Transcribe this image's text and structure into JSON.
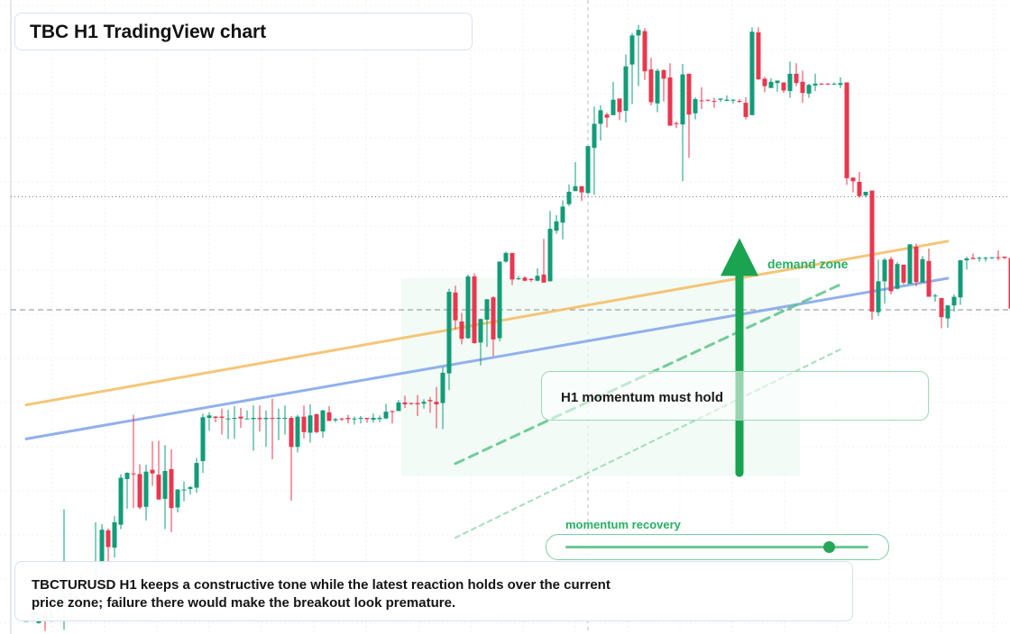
{
  "title": "TBC H1 TradingView chart",
  "labels": {
    "zone": "demand zone",
    "callout": "H1 momentum must hold",
    "meter": "momentum recovery"
  },
  "meter_value": 0.87,
  "note": "TBCTURUSD H1 keeps a constructive tone while the latest reaction holds over the current price zone; failure there would make the breakout look premature.",
  "colors": {
    "up": "#129c78",
    "down": "#e8374f",
    "orange_line": "#f5c06a",
    "blue_line": "#8cacec",
    "green_accent": "#1aa350",
    "zone_fill": "#eef9f1"
  },
  "chart_data": {
    "type": "candlestick",
    "timeframe": "H1",
    "y_range": [
      0,
      100
    ],
    "current_price_line": 70.2,
    "reference_line": 51.9,
    "demand_zone": {
      "from_bar": 60,
      "to_bar": 122,
      "low": 25,
      "high": 57
    },
    "candles": [
      [
        1.4,
        1.9,
        0.9,
        0.9
      ],
      [
        1.9,
        3.2,
        3.9,
        1.6
      ],
      [
        1.2,
        2.8,
        2.8,
        1.1
      ],
      [
        2.9,
        1.8,
        3.4,
        -0.1
      ],
      [
        1.7,
        3.3,
        3.8,
        1.4
      ],
      [
        3.1,
        4.5,
        5.6,
        2.5
      ],
      [
        4.4,
        6.0,
        19.6,
        0.1
      ],
      [
        6.3,
        4.8,
        6.5,
        1.5
      ],
      [
        3.8,
        5.6,
        5.9,
        3.8
      ],
      [
        5.7,
        6.6,
        7.3,
        5.4
      ],
      [
        6.7,
        6.9,
        7.1,
        6.4
      ],
      [
        7.0,
        10.0,
        17.5,
        6.0
      ],
      [
        10.0,
        16.3,
        17.2,
        6.6
      ],
      [
        16.2,
        13.5,
        16.5,
        6.2
      ],
      [
        13.4,
        17.5,
        18.5,
        11.8
      ],
      [
        17.1,
        24.7,
        25.3,
        16.4
      ],
      [
        24.5,
        25.5,
        25.6,
        19.7
      ],
      [
        25.4,
        25.3,
        34.9,
        19.8
      ],
      [
        25.3,
        19.9,
        26.9,
        19.6
      ],
      [
        20.0,
        25.7,
        26.8,
        17.8
      ],
      [
        26.0,
        25.4,
        30.6,
        23.4
      ],
      [
        25.2,
        21.2,
        30.7,
        21.1
      ],
      [
        21.3,
        25.8,
        30.0,
        16.4
      ],
      [
        26.1,
        19.8,
        29.3,
        15.9
      ],
      [
        19.9,
        22.8,
        22.9,
        19.1
      ],
      [
        22.7,
        22.8,
        24.1,
        20.9
      ],
      [
        22.9,
        23.2,
        23.4,
        22.0
      ],
      [
        23.1,
        27.1,
        27.9,
        22.3
      ],
      [
        27.4,
        34.5,
        35.1,
        25.5
      ],
      [
        34.4,
        34.8,
        35.3,
        32.3
      ],
      [
        34.6,
        34.4,
        34.7,
        33.7
      ],
      [
        34.6,
        34.4,
        35.9,
        31.7
      ],
      [
        34.3,
        34.3,
        35.7,
        31.0
      ],
      [
        34.4,
        34.4,
        36.3,
        31.0
      ],
      [
        34.6,
        34.3,
        36.0,
        32.8
      ],
      [
        34.3,
        34.3,
        35.6,
        34.3
      ],
      [
        34.2,
        34.4,
        36.4,
        29.1
      ],
      [
        34.4,
        34.2,
        36.4,
        32.2
      ],
      [
        34.2,
        34.4,
        35.6,
        29.7
      ],
      [
        34.4,
        34.3,
        37.5,
        27.7
      ],
      [
        34.4,
        34.4,
        35.9,
        30.8
      ],
      [
        34.4,
        34.4,
        36.4,
        31.7
      ],
      [
        34.4,
        29.7,
        34.7,
        21.0
      ],
      [
        29.7,
        34.6,
        34.9,
        28.8
      ],
      [
        34.6,
        32.1,
        36.4,
        31.1
      ],
      [
        32.0,
        34.8,
        36.6,
        30.4
      ],
      [
        35.0,
        32.1,
        35.1,
        31.9
      ],
      [
        32.2,
        35.6,
        35.7,
        31.2
      ],
      [
        35.3,
        33.9,
        36.3,
        33.9
      ],
      [
        34.0,
        34.2,
        34.4,
        33.7
      ],
      [
        34.3,
        34.2,
        34.4,
        33.9
      ],
      [
        34.4,
        34.2,
        34.9,
        33.5
      ],
      [
        34.3,
        34.3,
        34.6,
        33.3
      ],
      [
        34.4,
        34.4,
        34.7,
        33.5
      ],
      [
        34.4,
        34.2,
        34.4,
        33.6
      ],
      [
        34.1,
        34.4,
        35.1,
        33.6
      ],
      [
        34.2,
        34.4,
        34.8,
        33.7
      ],
      [
        34.3,
        35.4,
        36.7,
        34.2
      ],
      [
        35.5,
        35.4,
        35.6,
        33.5
      ],
      [
        35.5,
        36.9,
        37.3,
        35.6
      ],
      [
        36.9,
        36.6,
        38.0,
        36.0
      ],
      [
        36.8,
        36.7,
        36.9,
        36.5
      ],
      [
        36.8,
        36.6,
        38.1,
        34.7
      ],
      [
        36.7,
        37.0,
        37.4,
        35.9
      ],
      [
        37.3,
        37.1,
        37.8,
        35.2
      ],
      [
        37.0,
        36.6,
        39.4,
        32.7
      ],
      [
        36.8,
        41.7,
        42.6,
        32.6
      ],
      [
        41.6,
        54.8,
        55.3,
        38.9
      ],
      [
        54.7,
        50.2,
        55.8,
        48.7
      ],
      [
        50.0,
        47.2,
        51.4,
        46.3
      ],
      [
        47.3,
        57.3,
        57.6,
        47.2
      ],
      [
        57.3,
        46.5,
        57.8,
        46.4
      ],
      [
        46.6,
        50.4,
        50.5,
        42.9
      ],
      [
        50.3,
        53.6,
        53.6,
        45.9
      ],
      [
        53.9,
        47.1,
        54.1,
        44.4
      ],
      [
        47.3,
        59.7,
        59.6,
        46.8
      ],
      [
        59.7,
        61.1,
        61.3,
        59.5
      ],
      [
        61.1,
        56.8,
        60.6,
        55.9
      ],
      [
        56.9,
        57.0,
        57.4,
        56.7
      ],
      [
        57.1,
        56.6,
        57.3,
        56.5
      ],
      [
        56.9,
        56.7,
        57.0,
        56.4
      ],
      [
        56.6,
        57.4,
        58.6,
        56.5
      ],
      [
        57.6,
        56.3,
        63.4,
        56.3
      ],
      [
        56.5,
        65.0,
        67.9,
        56.9
      ],
      [
        64.7,
        66.2,
        67.2,
        64.2
      ],
      [
        66.0,
        68.6,
        69.6,
        63.3
      ],
      [
        69.0,
        71.0,
        72.2,
        68.7
      ],
      [
        71.1,
        71.9,
        75.8,
        71.1
      ],
      [
        71.9,
        70.9,
        71.9,
        69.5
      ],
      [
        70.8,
        78.4,
        78.1,
        70.6
      ],
      [
        78.1,
        82.0,
        84.8,
        70.5
      ],
      [
        82.0,
        84.2,
        85.0,
        79.3
      ],
      [
        83.5,
        83.0,
        83.8,
        81.4
      ],
      [
        83.4,
        85.9,
        88.8,
        85.3
      ],
      [
        86.1,
        83.9,
        86.0,
        82.6
      ],
      [
        84.1,
        91.3,
        93.2,
        82.2
      ],
      [
        91.6,
        96.3,
        96.7,
        85.2
      ],
      [
        96.3,
        97.2,
        98.0,
        88.1
      ],
      [
        97.0,
        90.5,
        97.5,
        89.1
      ],
      [
        90.8,
        85.5,
        92.7,
        85.0
      ],
      [
        85.3,
        90.6,
        90.9,
        83.9
      ],
      [
        90.7,
        89.3,
        90.8,
        85.6
      ],
      [
        89.5,
        81.7,
        91.8,
        82.6
      ],
      [
        82.1,
        82.0,
        82.4,
        81.3
      ],
      [
        81.9,
        90.0,
        91.7,
        72.7
      ],
      [
        90.1,
        83.5,
        90.1,
        76.5
      ],
      [
        83.7,
        86.0,
        86.3,
        82.7
      ],
      [
        85.8,
        85.7,
        87.9,
        84.4
      ],
      [
        85.9,
        85.8,
        85.9,
        85.6
      ],
      [
        85.7,
        85.6,
        86.2,
        84.6
      ],
      [
        85.9,
        86.1,
        86.0,
        85.5
      ],
      [
        85.7,
        85.9,
        86.6,
        85.7
      ],
      [
        85.9,
        85.9,
        86.0,
        85.3
      ],
      [
        85.7,
        85.6,
        86.0,
        85.4
      ],
      [
        85.4,
        83.1,
        86.3,
        82.7
      ],
      [
        83.4,
        96.9,
        97.6,
        84.7
      ],
      [
        96.8,
        89.2,
        97.6,
        89.1
      ],
      [
        89.3,
        88.1,
        89.6,
        87.1
      ],
      [
        87.8,
        88.8,
        89.4,
        87.9
      ],
      [
        88.6,
        89.0,
        89.0,
        87.2
      ],
      [
        88.7,
        87.4,
        88.7,
        87.0
      ],
      [
        87.3,
        90.1,
        92.1,
        86.2
      ],
      [
        90.1,
        88.6,
        91.8,
        88.1
      ],
      [
        88.8,
        87.0,
        90.6,
        85.4
      ],
      [
        86.9,
        88.3,
        88.5,
        86.2
      ],
      [
        88.2,
        88.5,
        90.1,
        87.3
      ],
      [
        88.5,
        88.4,
        88.6,
        88.3
      ],
      [
        88.5,
        88.4,
        88.6,
        88.3
      ],
      [
        88.5,
        88.5,
        88.7,
        88.4
      ],
      [
        88.3,
        88.6,
        89.5,
        87.8
      ],
      [
        88.7,
        73.2,
        88.5,
        72.1
      ],
      [
        73.3,
        72.7,
        73.2,
        70.9
      ],
      [
        72.6,
        70.3,
        74.2,
        70.0
      ],
      [
        70.4,
        71.0,
        70.8,
        70.1
      ],
      [
        71.2,
        51.6,
        70.8,
        50.3
      ],
      [
        51.5,
        56.5,
        60.0,
        50.9
      ],
      [
        56.5,
        60.0,
        60.3,
        52.9
      ],
      [
        60.1,
        54.9,
        60.5,
        54.4
      ],
      [
        55.3,
        59.3,
        59.6,
        55.2
      ],
      [
        59.2,
        56.3,
        59.2,
        56.0
      ],
      [
        56.1,
        62.5,
        61.5,
        58.0
      ],
      [
        62.1,
        56.4,
        62.6,
        55.7
      ],
      [
        56.3,
        60.1,
        60.6,
        59.6
      ],
      [
        59.8,
        54.0,
        61.8,
        54.6
      ],
      [
        54.2,
        54.2,
        54.5,
        53.2
      ],
      [
        53.8,
        50.7,
        52.8,
        48.9
      ],
      [
        50.5,
        52.6,
        52.7,
        49.0
      ],
      [
        52.6,
        54.0,
        54.4,
        51.6
      ],
      [
        53.9,
        59.9,
        60.0,
        52.7
      ],
      [
        59.9,
        60.2,
        60.5,
        58.4
      ],
      [
        60.3,
        60.1,
        61.0,
        60.3
      ],
      [
        60.2,
        60.3,
        60.5,
        59.7
      ],
      [
        60.2,
        60.3,
        60.5,
        59.7
      ],
      [
        60.3,
        60.4,
        60.4,
        60.1
      ],
      [
        60.4,
        60.3,
        61.5,
        59.9
      ],
      [
        60.5,
        60.3,
        60.4,
        60.1
      ],
      [
        60.3,
        52.1,
        60.3,
        51.9
      ],
      [
        52.5,
        47.5,
        52.8,
        46.5
      ],
      [
        47.6,
        47.9,
        48.1,
        47.0
      ],
      [
        47.8,
        48.0,
        48.6,
        46.9
      ],
      [
        47.9,
        48.1,
        48.5,
        47.9
      ],
      [
        47.5,
        44.6,
        48.9,
        43.7
      ],
      [
        44.4,
        41.9,
        44.6,
        37.7
      ],
      [
        41.8,
        41.5,
        43.8,
        39.2
      ],
      [
        41.5,
        34.7,
        42.4,
        33.7
      ],
      [
        35.0,
        34.4,
        39.3,
        33.6
      ],
      [
        34.3,
        35.2,
        36.2,
        34.3
      ],
      [
        35.0,
        35.2,
        35.6,
        33.8
      ],
      [
        35.4,
        42.7,
        45.5,
        35.2
      ],
      [
        42.7,
        44.5,
        47.2,
        42.5
      ],
      [
        44.5,
        45.2,
        44.7,
        43.4
      ],
      [
        44.8,
        37.0,
        44.7,
        37.1
      ],
      [
        37.1,
        39.0,
        40.8,
        37.0
      ],
      [
        38.9,
        37.5,
        40.3,
        37.3
      ],
      [
        37.3,
        36.8,
        37.9,
        37.4
      ],
      [
        37.2,
        40.1,
        41.2,
        31.4
      ],
      [
        39.8,
        39.5,
        40.9,
        38.5
      ],
      [
        39.6,
        36.3,
        39.9,
        36.3
      ],
      [
        36.4,
        36.4,
        39.0,
        37.6
      ],
      [
        36.5,
        38.6,
        45.2,
        34.8
      ],
      [
        38.6,
        37.5,
        38.9,
        37.3
      ],
      [
        37.4,
        37.3,
        37.4,
        37.2
      ],
      [
        37.3,
        37.4,
        37.3,
        36.7
      ],
      [
        37.0,
        37.3,
        37.8,
        37.3
      ],
      [
        37.4,
        36.4,
        37.5,
        31.1
      ],
      [
        36.4,
        35.1,
        36.4,
        34.5
      ],
      [
        34.9,
        35.3,
        35.7,
        33.9
      ],
      [
        35.4,
        34.4,
        35.6,
        34.5
      ],
      [
        34.5,
        34.5,
        35.0,
        34.0
      ],
      [
        34.4,
        35.3,
        39.4,
        21.7
      ],
      [
        35.4,
        34.4,
        43.1,
        33.9
      ],
      [
        34.5,
        34.5,
        34.7,
        34.0
      ],
      [
        34.5,
        34.3,
        43.5,
        26.6
      ],
      [
        34.4,
        37.5,
        40.2,
        34.1
      ],
      [
        37.6,
        41.2,
        48.7,
        34.1
      ],
      [
        41.0,
        44.6,
        45.6,
        41.5
      ],
      [
        44.8,
        51.7,
        51.7,
        40.9
      ],
      [
        51.5,
        55.6,
        57.3,
        51.5
      ],
      [
        55.6,
        59.9,
        59.3,
        54.8
      ],
      [
        59.5,
        65.2,
        65.8,
        59.3
      ],
      [
        65.2,
        64.2,
        66.3,
        62.3
      ],
      [
        64.3,
        62.1,
        65.5,
        62.7
      ],
      [
        62.4,
        61.2,
        65.2,
        62.6
      ],
      [
        61.3,
        70.5,
        71.5,
        60.7
      ]
    ],
    "overlays": [
      {
        "name": "orange trendline",
        "points": [
          [
            0,
            36.5
          ],
          [
            146,
            63.0
          ]
        ]
      },
      {
        "name": "blue trendline",
        "points": [
          [
            0,
            31.0
          ],
          [
            146,
            57.0
          ]
        ]
      },
      {
        "name": "green dashed channel",
        "points": [
          [
            68,
            27.0
          ],
          [
            129,
            56.0
          ]
        ]
      },
      {
        "name": "green dotted channel",
        "points": [
          [
            68,
            15.0
          ],
          [
            129,
            45.5
          ]
        ]
      }
    ],
    "arrow": {
      "bar": 113,
      "from": 25.5,
      "to": 63.5,
      "direction": "up"
    },
    "grid": true
  }
}
